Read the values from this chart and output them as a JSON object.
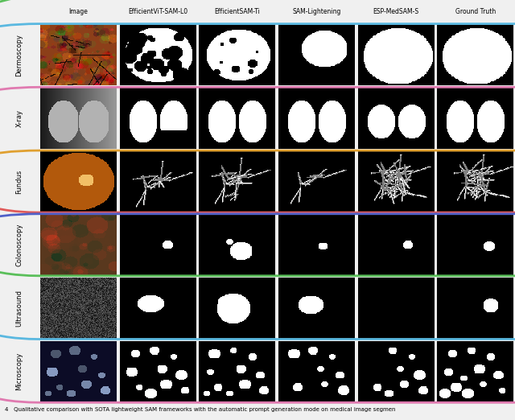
{
  "col_headers": [
    "Image",
    "EfficientViT-SAM-L0",
    "EfficientSAM-Ti",
    "SAM-Lightening",
    "ESP-MedSAM-S",
    "Ground Truth"
  ],
  "row_labels": [
    "Dermoscopy",
    "X-ray",
    "Fundus",
    "Colonoscopy",
    "Ultrasound",
    "Microscopy"
  ],
  "row_colors": [
    "#e05a5a",
    "#5abf5a",
    "#5ab8e0",
    "#e07ab0",
    "#e0a030",
    "#5060c8"
  ],
  "caption": "4   Qualitative comparison with SOTA lightweight SAM frameworks with the automatic prompt generation mode on medical image segmen",
  "n_rows": 6,
  "n_cols": 6,
  "bg_color": "#000000",
  "header_color": "#f0f0f0",
  "label_color": "#f0f0f0"
}
